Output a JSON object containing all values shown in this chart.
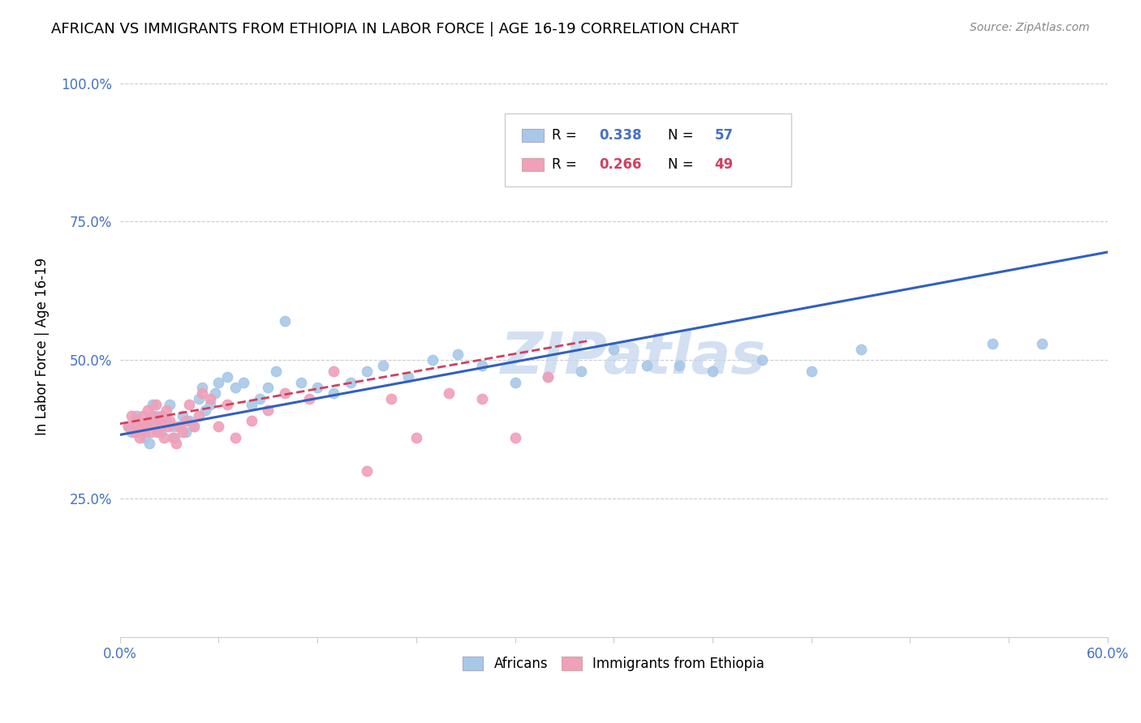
{
  "title": "AFRICAN VS IMMIGRANTS FROM ETHIOPIA IN LABOR FORCE | AGE 16-19 CORRELATION CHART",
  "source": "Source: ZipAtlas.com",
  "ylabel": "In Labor Force | Age 16-19",
  "xlim": [
    0.0,
    0.6
  ],
  "ylim": [
    0.0,
    1.05
  ],
  "yticks": [
    0.25,
    0.5,
    0.75,
    1.0
  ],
  "ytick_labels": [
    "25.0%",
    "50.0%",
    "75.0%",
    "100.0%"
  ],
  "xticks": [
    0.0,
    0.06,
    0.12,
    0.18,
    0.24,
    0.3,
    0.36,
    0.42,
    0.48,
    0.54,
    0.6
  ],
  "xtick_labels_show": [
    "0.0%",
    "",
    "",
    "",
    "",
    "",
    "",
    "",
    "",
    "",
    "60.0%"
  ],
  "blue_R": 0.338,
  "blue_N": 57,
  "pink_R": 0.266,
  "pink_N": 49,
  "blue_dot_color": "#a8c8e8",
  "blue_line_color": "#3060c0",
  "pink_dot_color": "#f0a0b8",
  "pink_line_color": "#d04060",
  "watermark": "ZIPatlas",
  "watermark_color": "#c0d4ec",
  "title_fontsize": 13,
  "tick_color": "#4472c4",
  "legend_R_color": "#4472c4",
  "blue_line_y0": 0.365,
  "blue_line_y1": 0.695,
  "pink_line_y0": 0.385,
  "pink_line_y1": 0.535,
  "pink_line_x1": 0.285,
  "blue_scatter_x": [
    0.005,
    0.007,
    0.01,
    0.012,
    0.015,
    0.016,
    0.018,
    0.02,
    0.022,
    0.024,
    0.025,
    0.026,
    0.028,
    0.03,
    0.032,
    0.033,
    0.035,
    0.038,
    0.04,
    0.042,
    0.045,
    0.048,
    0.05,
    0.052,
    0.055,
    0.058,
    0.06,
    0.065,
    0.07,
    0.075,
    0.08,
    0.085,
    0.09,
    0.095,
    0.1,
    0.11,
    0.12,
    0.13,
    0.14,
    0.15,
    0.16,
    0.175,
    0.19,
    0.205,
    0.22,
    0.24,
    0.26,
    0.28,
    0.3,
    0.32,
    0.34,
    0.36,
    0.39,
    0.42,
    0.45,
    0.53,
    0.56
  ],
  "blue_scatter_y": [
    0.38,
    0.37,
    0.4,
    0.37,
    0.36,
    0.38,
    0.35,
    0.42,
    0.4,
    0.38,
    0.37,
    0.4,
    0.39,
    0.42,
    0.38,
    0.36,
    0.38,
    0.4,
    0.37,
    0.39,
    0.38,
    0.43,
    0.45,
    0.41,
    0.42,
    0.44,
    0.46,
    0.47,
    0.45,
    0.46,
    0.42,
    0.43,
    0.45,
    0.48,
    0.57,
    0.46,
    0.45,
    0.44,
    0.46,
    0.48,
    0.49,
    0.47,
    0.5,
    0.51,
    0.49,
    0.46,
    0.47,
    0.48,
    0.52,
    0.49,
    0.49,
    0.48,
    0.5,
    0.48,
    0.52,
    0.53,
    0.53
  ],
  "pink_scatter_x": [
    0.005,
    0.007,
    0.009,
    0.01,
    0.011,
    0.012,
    0.013,
    0.014,
    0.015,
    0.016,
    0.017,
    0.018,
    0.019,
    0.02,
    0.021,
    0.022,
    0.023,
    0.024,
    0.025,
    0.026,
    0.027,
    0.028,
    0.029,
    0.03,
    0.032,
    0.034,
    0.036,
    0.038,
    0.04,
    0.042,
    0.045,
    0.048,
    0.05,
    0.055,
    0.06,
    0.065,
    0.07,
    0.08,
    0.09,
    0.1,
    0.115,
    0.13,
    0.15,
    0.165,
    0.18,
    0.2,
    0.22,
    0.24,
    0.26
  ],
  "pink_scatter_y": [
    0.38,
    0.4,
    0.37,
    0.38,
    0.39,
    0.36,
    0.38,
    0.4,
    0.37,
    0.38,
    0.41,
    0.39,
    0.37,
    0.4,
    0.38,
    0.42,
    0.37,
    0.39,
    0.38,
    0.4,
    0.36,
    0.41,
    0.38,
    0.39,
    0.36,
    0.35,
    0.38,
    0.37,
    0.39,
    0.42,
    0.38,
    0.4,
    0.44,
    0.43,
    0.38,
    0.42,
    0.36,
    0.39,
    0.41,
    0.44,
    0.43,
    0.48,
    0.3,
    0.43,
    0.36,
    0.44,
    0.43,
    0.36,
    0.47
  ]
}
